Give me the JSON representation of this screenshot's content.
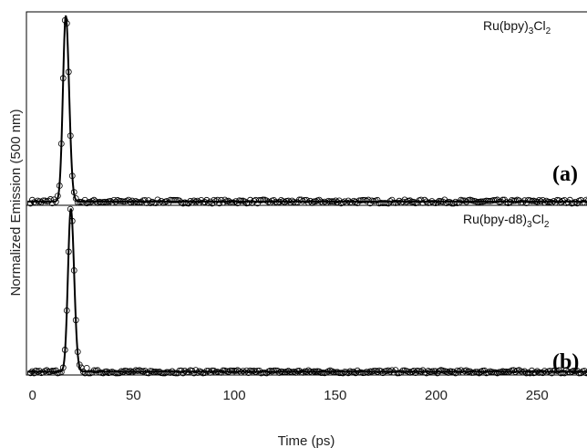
{
  "chart_data": {
    "type": "scatter",
    "xlabel": "Time (ps)",
    "ylabel": "Normalized Emission (500 nm)",
    "xlim": [
      -3,
      277
    ],
    "xticks": [
      0,
      50,
      100,
      150,
      200,
      250
    ],
    "grid": false,
    "legend": "none",
    "panels": [
      {
        "tag": "(a)",
        "compound": {
          "base": "Ru(bpy)",
          "sub1": "3",
          "mid": "Cl",
          "sub2": "2"
        },
        "ylim": [
          -0.02,
          1.02
        ],
        "peak_center_ps": 16.5,
        "rise_width_ps": 2.0,
        "decay_width_ps": 2.3,
        "baseline": 0.0
      },
      {
        "tag": "(b)",
        "compound": {
          "base": "Ru(bpy-d8)",
          "sub1": "3",
          "mid": "Cl",
          "sub2": "2"
        },
        "ylim": [
          -0.02,
          1.02
        ],
        "peak_center_ps": 19.0,
        "rise_width_ps": 2.0,
        "decay_width_ps": 2.3,
        "baseline": 0.0
      }
    ]
  }
}
